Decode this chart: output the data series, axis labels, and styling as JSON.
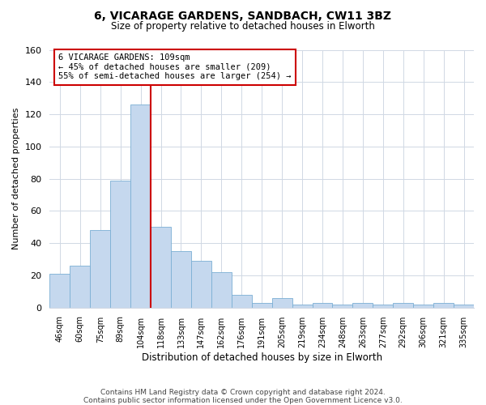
{
  "title_line1": "6, VICARAGE GARDENS, SANDBACH, CW11 3BZ",
  "title_line2": "Size of property relative to detached houses in Elworth",
  "xlabel": "Distribution of detached houses by size in Elworth",
  "ylabel": "Number of detached properties",
  "categories": [
    "46sqm",
    "60sqm",
    "75sqm",
    "89sqm",
    "104sqm",
    "118sqm",
    "133sqm",
    "147sqm",
    "162sqm",
    "176sqm",
    "191sqm",
    "205sqm",
    "219sqm",
    "234sqm",
    "248sqm",
    "263sqm",
    "277sqm",
    "292sqm",
    "306sqm",
    "321sqm",
    "335sqm"
  ],
  "bar_heights": [
    21,
    26,
    48,
    79,
    126,
    50,
    35,
    29,
    22,
    8,
    3,
    6,
    2,
    3,
    2,
    3,
    2,
    3,
    2,
    3,
    2
  ],
  "bar_color": "#c5d8ee",
  "bar_edge_color": "#7bafd4",
  "vline_color": "#cc0000",
  "vline_pos": 4.5,
  "annotation_line1": "6 VICARAGE GARDENS: 109sqm",
  "annotation_line2": "← 45% of detached houses are smaller (209)",
  "annotation_line3": "55% of semi-detached houses are larger (254) →",
  "ylim": [
    0,
    160
  ],
  "yticks": [
    0,
    20,
    40,
    60,
    80,
    100,
    120,
    140,
    160
  ],
  "footer_line1": "Contains HM Land Registry data © Crown copyright and database right 2024.",
  "footer_line2": "Contains public sector information licensed under the Open Government Licence v3.0.",
  "background_color": "#ffffff",
  "grid_color": "#d0d8e4"
}
